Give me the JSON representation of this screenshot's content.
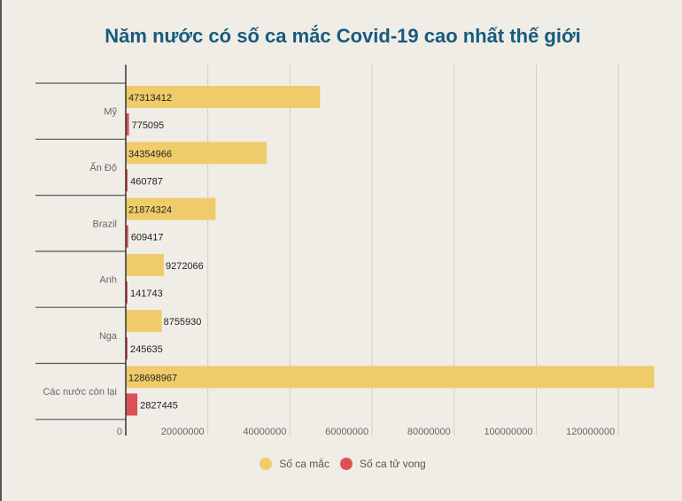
{
  "chart_data": {
    "type": "bar",
    "orientation": "horizontal",
    "title": "Năm nước có số ca mắc Covid-19 cao nhất thế giới",
    "categories": [
      "Mỹ",
      "Ấn Độ",
      "Brazil",
      "Anh",
      "Nga",
      "Các nước còn lại"
    ],
    "series": [
      {
        "name": "Số ca mắc",
        "color": "#f0cb6a",
        "values": [
          47313412,
          34354966,
          21874324,
          9272066,
          8755930,
          128698967
        ]
      },
      {
        "name": "Số ca tử vong",
        "color": "#dc5158",
        "values": [
          775095,
          460787,
          609417,
          141743,
          245635,
          2827445
        ]
      }
    ],
    "xlim": [
      0,
      130000000
    ],
    "xticks": [
      "0",
      "20000000",
      "40000000",
      "60000000",
      "80000000",
      "100000000",
      "120000000"
    ],
    "grid": true,
    "legend": "bottom"
  }
}
